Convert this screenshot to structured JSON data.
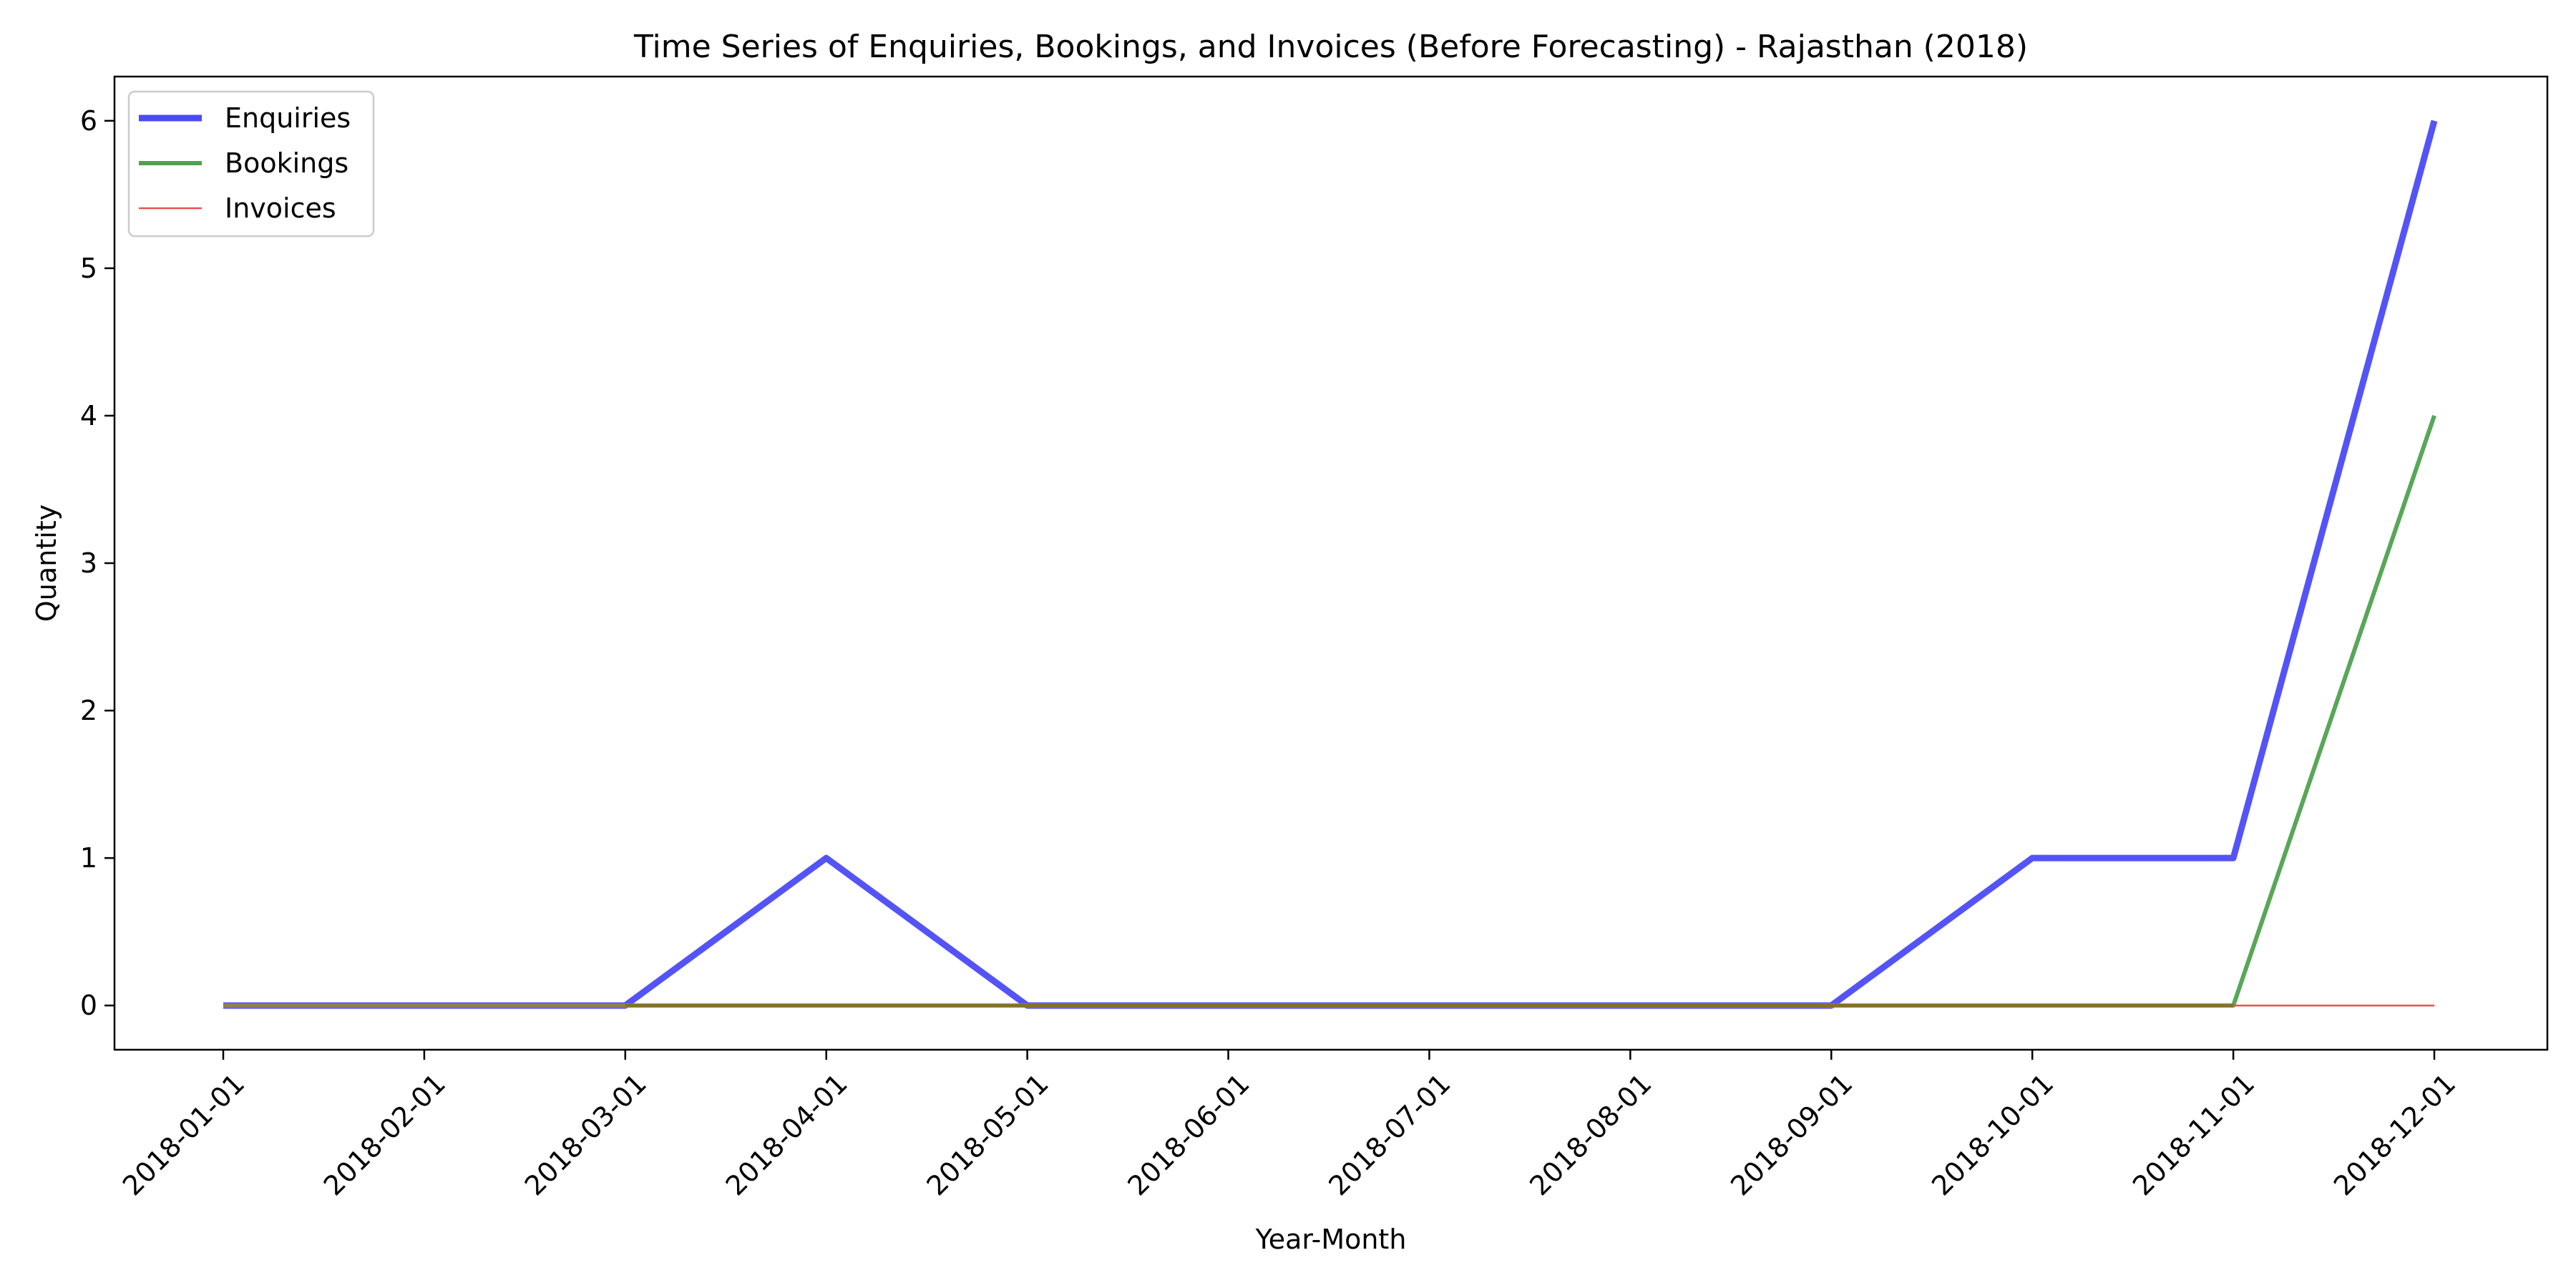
{
  "chart_data": {
    "type": "line",
    "title": "Time Series of Enquiries, Bookings, and Invoices (Before Forecasting) - Rajasthan (2018)",
    "xlabel": "Year-Month",
    "ylabel": "Quantity",
    "categories": [
      "2018-01-01",
      "2018-02-01",
      "2018-03-01",
      "2018-04-01",
      "2018-05-01",
      "2018-06-01",
      "2018-07-01",
      "2018-08-01",
      "2018-09-01",
      "2018-10-01",
      "2018-11-01",
      "2018-12-01"
    ],
    "yticks": [
      0,
      1,
      2,
      3,
      4,
      5,
      6
    ],
    "ylim": [
      -0.3,
      6.3
    ],
    "grid": false,
    "legend_position": "top-left",
    "series": [
      {
        "name": "Enquiries",
        "color": "#4b4bf5",
        "values": [
          0,
          0,
          0,
          1,
          0,
          0,
          0,
          0,
          0,
          1,
          1,
          6
        ]
      },
      {
        "name": "Bookings",
        "color": "#4fa24f",
        "values": [
          0,
          0,
          0,
          0,
          0,
          0,
          0,
          0,
          0,
          0,
          0,
          4
        ]
      },
      {
        "name": "Invoices",
        "color": "#ef5050",
        "values": [
          0,
          0,
          0,
          0,
          0,
          0,
          0,
          0,
          0,
          0,
          0,
          0
        ]
      }
    ]
  }
}
